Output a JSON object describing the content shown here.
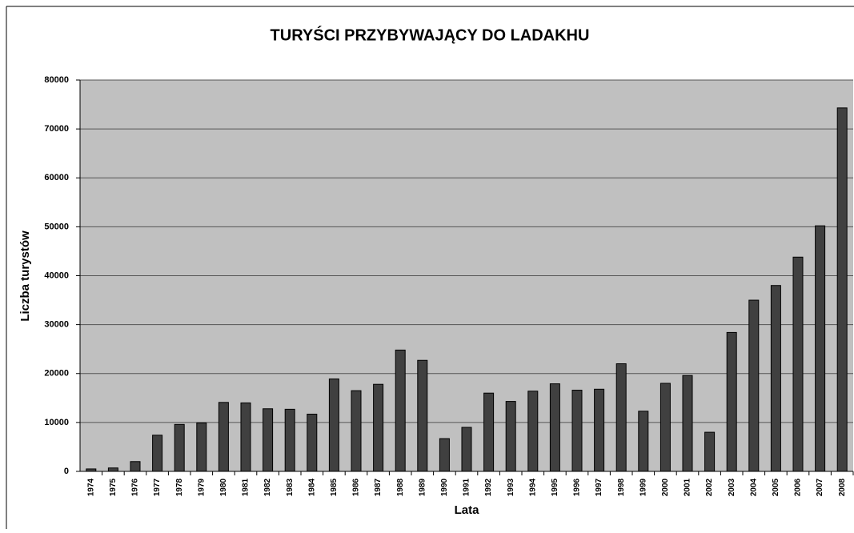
{
  "chart_data": {
    "type": "bar",
    "title": "TURYŚCI PRZYBYWAJĄCY DO LADAKHU",
    "x_label": "Lata",
    "y_label": "Liczba turystów",
    "categories": [
      "1974",
      "1975",
      "1976",
      "1977",
      "1978",
      "1979",
      "1980",
      "1981",
      "1982",
      "1983",
      "1984",
      "1985",
      "1986",
      "1987",
      "1988",
      "1989",
      "1990",
      "1991",
      "1992",
      "1993",
      "1994",
      "1995",
      "1996",
      "1997",
      "1998",
      "1999",
      "2000",
      "2001",
      "2002",
      "2003",
      "2004",
      "2005",
      "2006",
      "2007",
      "2008"
    ],
    "values": [
      500,
      700,
      2000,
      7400,
      9600,
      9900,
      14100,
      14000,
      12800,
      12700,
      11700,
      18900,
      16500,
      17800,
      24800,
      22700,
      6700,
      9000,
      16000,
      14300,
      16400,
      17900,
      16600,
      16800,
      22000,
      12300,
      18000,
      19600,
      8000,
      28400,
      35000,
      38000,
      43800,
      50200,
      74300
    ],
    "color": "#404040",
    "ylim": [
      0,
      80000
    ],
    "yticks": [
      0,
      10000,
      20000,
      30000,
      40000,
      50000,
      60000,
      70000,
      80000
    ],
    "grid": true
  }
}
